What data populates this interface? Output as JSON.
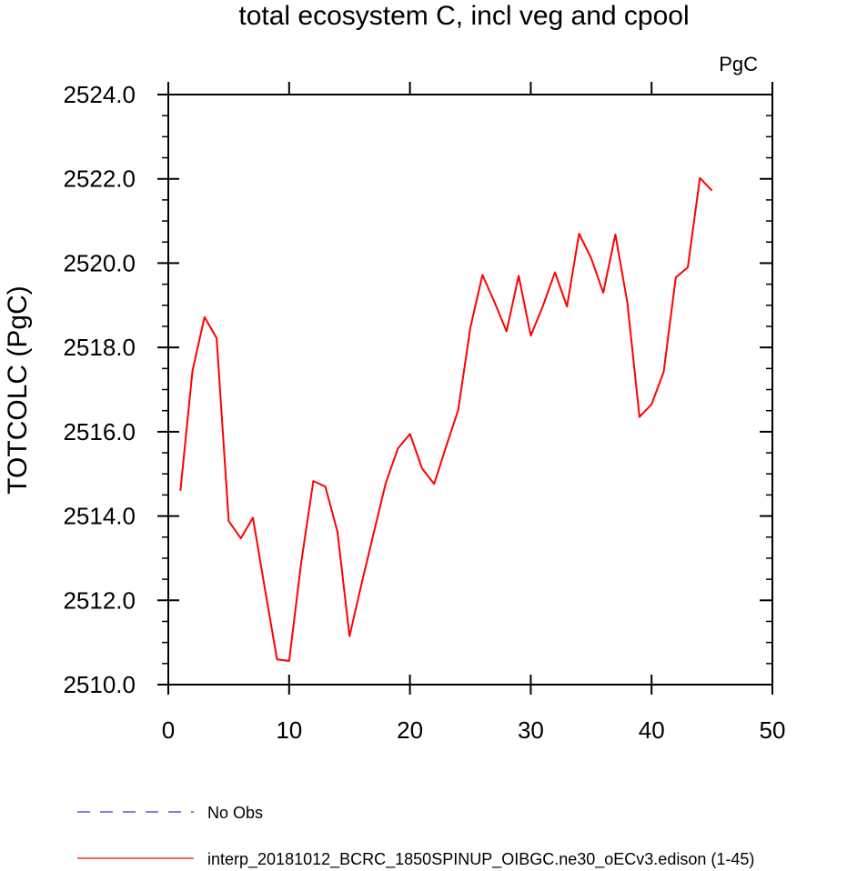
{
  "chart_data": {
    "type": "line",
    "title": "total ecosystem C, incl veg and cpool",
    "units_label": "PgC",
    "ylabel": "TOTCOLC  (PgC)",
    "xlabel": "",
    "xlim": [
      0,
      50
    ],
    "ylim": [
      2510.0,
      2524.0
    ],
    "xticks": [
      0,
      10,
      20,
      30,
      40,
      50
    ],
    "yticks": [
      2510.0,
      2512.0,
      2514.0,
      2516.0,
      2518.0,
      2520.0,
      2522.0,
      2524.0
    ],
    "xtick_labels": [
      "0",
      "10",
      "20",
      "30",
      "40",
      "50"
    ],
    "ytick_labels": [
      "2510.0",
      "2512.0",
      "2514.0",
      "2516.0",
      "2518.0",
      "2520.0",
      "2522.0",
      "2524.0"
    ],
    "grid": false,
    "legend_position": "bottom",
    "series": [
      {
        "name": "No Obs",
        "color": "#3333cc",
        "dashed": true,
        "values": []
      },
      {
        "name": "interp_20181012_BCRC_1850SPINUP_OIBGC.ne30_oECv3.edison (1-45)",
        "color": "#ff0000",
        "dashed": false,
        "x": [
          1,
          2,
          3,
          4,
          5,
          6,
          7,
          8,
          9,
          10,
          11,
          12,
          13,
          14,
          15,
          16,
          17,
          18,
          19,
          20,
          21,
          22,
          23,
          24,
          25,
          26,
          27,
          28,
          29,
          30,
          31,
          32,
          33,
          34,
          35,
          36,
          37,
          38,
          39,
          40,
          41,
          42,
          43,
          44,
          45
        ],
        "values": [
          2514.6,
          2517.45,
          2518.72,
          2518.22,
          2513.88,
          2513.47,
          2513.96,
          2512.27,
          2510.6,
          2510.56,
          2512.9,
          2514.83,
          2514.7,
          2513.63,
          2511.15,
          2512.4,
          2513.6,
          2514.78,
          2515.6,
          2515.95,
          2515.13,
          2514.76,
          2515.65,
          2516.52,
          2518.47,
          2519.72,
          2519.07,
          2518.38,
          2519.7,
          2518.28,
          2518.98,
          2519.78,
          2518.97,
          2520.7,
          2520.12,
          2519.3,
          2520.68,
          2519.06,
          2516.35,
          2516.65,
          2517.42,
          2519.66,
          2519.9,
          2522.02,
          2521.72
        ]
      }
    ]
  }
}
